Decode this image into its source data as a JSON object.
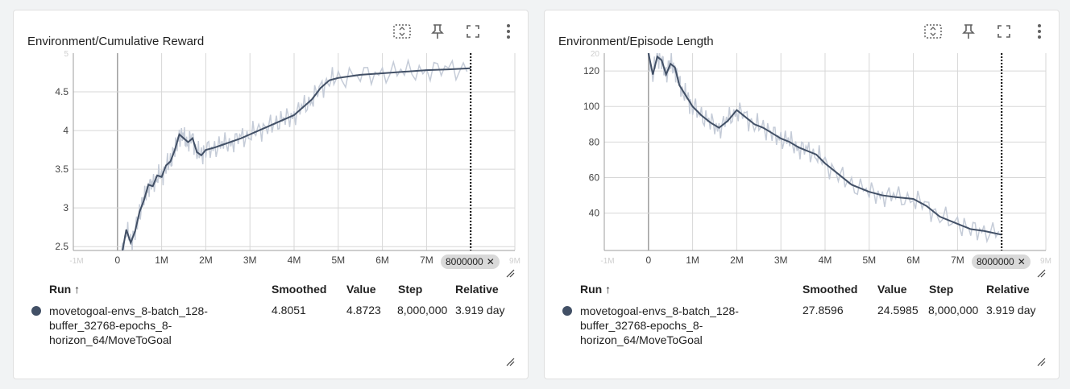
{
  "cards": [
    {
      "title": "Environment/Cumulative Reward",
      "chart_data": {
        "type": "line",
        "title": "Environment/Cumulative Reward",
        "xlabel": "",
        "ylabel": "",
        "xlim": [
          -1000000,
          9000000
        ],
        "ylim": [
          2.45,
          5.0
        ],
        "x_ticks": [
          0,
          1000000,
          2000000,
          3000000,
          4000000,
          5000000,
          6000000,
          7000000
        ],
        "x_tick_labels": [
          "0",
          "1M",
          "2M",
          "3M",
          "4M",
          "5M",
          "6M",
          "7M"
        ],
        "x_tick_faint": [
          "-1M",
          "9M"
        ],
        "y_ticks": [
          2.5,
          3,
          3.5,
          4,
          4.5
        ],
        "y_tick_labels": [
          "2.5",
          "3",
          "3.5",
          "4",
          "4.5"
        ],
        "y_tick_faint": "5",
        "grid": true,
        "series": [
          {
            "name": "movetogoal-envs_8-batch_128-buffer_32768-epochs_8-horizon_64/MoveToGoal",
            "color": "#425066",
            "x": [
              100000,
              200000,
              300000,
              400000,
              500000,
              600000,
              700000,
              800000,
              900000,
              1000000,
              1100000,
              1200000,
              1300000,
              1400000,
              1500000,
              1600000,
              1700000,
              1800000,
              1900000,
              2000000,
              2200000,
              2400000,
              2600000,
              2800000,
              3000000,
              3200000,
              3400000,
              3600000,
              3800000,
              4000000,
              4200000,
              4400000,
              4600000,
              4800000,
              5000000,
              5500000,
              6000000,
              6500000,
              7000000,
              7500000,
              8000000
            ],
            "values": [
              2.4,
              2.72,
              2.55,
              2.7,
              2.95,
              3.1,
              3.3,
              3.28,
              3.42,
              3.4,
              3.55,
              3.6,
              3.75,
              3.95,
              3.9,
              3.85,
              3.9,
              3.72,
              3.68,
              3.75,
              3.78,
              3.82,
              3.86,
              3.9,
              3.95,
              4.0,
              4.05,
              4.1,
              4.15,
              4.2,
              4.3,
              4.4,
              4.55,
              4.65,
              4.68,
              4.72,
              4.74,
              4.76,
              4.78,
              4.79,
              4.805
            ]
          }
        ]
      },
      "step_chip": "8000000",
      "table": {
        "headers": {
          "run": "Run ↑",
          "smoothed": "Smoothed",
          "value": "Value",
          "step": "Step",
          "relative": "Relative"
        },
        "rows": [
          {
            "run": "movetogoal-envs_8-batch_128-buffer_32768-epochs_8-horizon_64/MoveToGoal",
            "smoothed": "4.8051",
            "value": "4.8723",
            "step": "8,000,000",
            "relative": "3.919 day"
          }
        ]
      }
    },
    {
      "title": "Environment/Episode Length",
      "chart_data": {
        "type": "line",
        "title": "Environment/Episode Length",
        "xlabel": "",
        "ylabel": "",
        "xlim": [
          -1000000,
          9000000
        ],
        "ylim": [
          19,
          130
        ],
        "x_ticks": [
          0,
          1000000,
          2000000,
          3000000,
          4000000,
          5000000,
          6000000,
          7000000
        ],
        "x_tick_labels": [
          "0",
          "1M",
          "2M",
          "3M",
          "4M",
          "5M",
          "6M",
          "7M"
        ],
        "x_tick_faint": [
          "-1M",
          "9M"
        ],
        "y_ticks": [
          40,
          60,
          80,
          100,
          120
        ],
        "y_tick_labels": [
          "40",
          "60",
          "80",
          "100",
          "120"
        ],
        "y_tick_faint": "20",
        "grid": true,
        "series": [
          {
            "name": "movetogoal-envs_8-batch_128-buffer_32768-epochs_8-horizon_64/MoveToGoal",
            "color": "#425066",
            "x": [
              0,
              100000,
              200000,
              300000,
              400000,
              500000,
              600000,
              700000,
              800000,
              900000,
              1000000,
              1200000,
              1400000,
              1600000,
              1800000,
              2000000,
              2200000,
              2400000,
              2600000,
              2800000,
              3000000,
              3200000,
              3400000,
              3600000,
              3800000,
              4000000,
              4300000,
              4600000,
              5000000,
              5300000,
              5600000,
              6000000,
              6300000,
              6600000,
              7000000,
              7300000,
              7600000,
              8000000
            ],
            "values": [
              130,
              118,
              128,
              126,
              118,
              124,
              122,
              112,
              108,
              104,
              100,
              95,
              91,
              88,
              92,
              98,
              94,
              90,
              88,
              85,
              82,
              80,
              77,
              75,
              73,
              68,
              62,
              56,
              52,
              50,
              49,
              48,
              44,
              38,
              34,
              31,
              30,
              27.86
            ]
          }
        ]
      },
      "step_chip": "8000000",
      "table": {
        "headers": {
          "run": "Run ↑",
          "smoothed": "Smoothed",
          "value": "Value",
          "step": "Step",
          "relative": "Relative"
        },
        "rows": [
          {
            "run": "movetogoal-envs_8-batch_128-buffer_32768-epochs_8-horizon_64/MoveToGoal",
            "smoothed": "27.8596",
            "value": "24.5985",
            "step": "8,000,000",
            "relative": "3.919 day"
          }
        ]
      }
    }
  ],
  "icons": [
    "fit-domain-icon",
    "pin-icon",
    "fullscreen-icon",
    "more-vert-icon",
    "resize-handle-icon",
    "close-icon"
  ],
  "colors": {
    "line": "#425066",
    "raw": "#c5ccd8",
    "grid": "#d7d7d7",
    "step_line": "#000000"
  }
}
